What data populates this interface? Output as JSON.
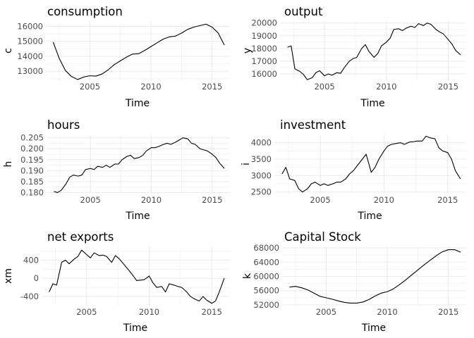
{
  "chart_data": [
    {
      "type": "line",
      "title": "consumption",
      "xlabel": "Time",
      "ylabel": "c",
      "xlim": [
        2001.4,
        2016.4
      ],
      "ylim": [
        12400,
        16350
      ],
      "xticks": [
        2005,
        2010,
        2015
      ],
      "xtick_labels": [
        "2005",
        "2010",
        "2015"
      ],
      "yticks": [
        13000,
        14000,
        15000,
        16000
      ],
      "ytick_labels": [
        "13000",
        "14000",
        "15000",
        "16000"
      ],
      "grid": true,
      "series": [
        {
          "x": [
            2002.0,
            2002.5,
            2003.0,
            2003.5,
            2004.0,
            2004.5,
            2005.0,
            2005.5,
            2006.0,
            2006.5,
            2007.0,
            2007.5,
            2008.0,
            2008.5,
            2009.0,
            2009.5,
            2010.0,
            2010.5,
            2011.0,
            2011.5,
            2012.0,
            2012.5,
            2013.0,
            2013.5,
            2014.0,
            2014.5,
            2015.0,
            2015.5,
            2016.0
          ],
          "y": [
            14950,
            13850,
            13050,
            12650,
            12450,
            12620,
            12700,
            12680,
            12820,
            13100,
            13450,
            13700,
            13950,
            14150,
            14180,
            14400,
            14650,
            14900,
            15150,
            15300,
            15350,
            15550,
            15800,
            15950,
            16050,
            16150,
            15950,
            15550,
            14750
          ]
        }
      ]
    },
    {
      "type": "line",
      "title": "output",
      "xlabel": "Time",
      "ylabel": "y",
      "xlim": [
        2001.4,
        2016.4
      ],
      "ylim": [
        15500,
        20150
      ],
      "xticks": [
        2005,
        2010,
        2015
      ],
      "xtick_labels": [
        "2005",
        "2010",
        "2015"
      ],
      "yticks": [
        16000,
        17000,
        18000,
        19000,
        20000
      ],
      "ytick_labels": [
        "16000",
        "17000",
        "18000",
        "19000",
        "20000"
      ],
      "grid": true,
      "series": [
        {
          "x": [
            2002.0,
            2002.3,
            2002.6,
            2003.0,
            2003.3,
            2003.6,
            2004.0,
            2004.3,
            2004.6,
            2005.0,
            2005.3,
            2005.6,
            2006.0,
            2006.3,
            2006.6,
            2007.0,
            2007.3,
            2007.6,
            2008.0,
            2008.3,
            2008.6,
            2009.0,
            2009.3,
            2009.6,
            2010.0,
            2010.3,
            2010.6,
            2011.0,
            2011.3,
            2011.6,
            2012.0,
            2012.3,
            2012.6,
            2013.0,
            2013.3,
            2013.6,
            2014.0,
            2014.3,
            2014.6,
            2015.0,
            2015.3,
            2015.6,
            2016.0
          ],
          "y": [
            18100,
            18200,
            16400,
            16200,
            15950,
            15550,
            15700,
            16100,
            16250,
            15850,
            16000,
            15900,
            16100,
            16050,
            16500,
            17000,
            17200,
            17300,
            18000,
            18300,
            17750,
            17300,
            17600,
            18200,
            18500,
            18800,
            19500,
            19550,
            19400,
            19600,
            19750,
            19650,
            19950,
            19800,
            20000,
            19900,
            19500,
            19300,
            19150,
            18700,
            18350,
            17850,
            17500
          ]
        }
      ]
    },
    {
      "type": "line",
      "title": "hours",
      "xlabel": "Time",
      "ylabel": "h",
      "xlim": [
        2001.4,
        2016.4
      ],
      "ylim": [
        0.1795,
        0.2065
      ],
      "xticks": [
        2005,
        2010,
        2015
      ],
      "xtick_labels": [
        "2005",
        "2010",
        "2015"
      ],
      "yticks": [
        0.18,
        0.185,
        0.19,
        0.195,
        0.2,
        0.205
      ],
      "ytick_labels": [
        "0.180",
        "0.185",
        "0.190",
        "0.195",
        "0.200",
        "0.205"
      ],
      "grid": true,
      "series": [
        {
          "x": [
            2002.0,
            2002.3,
            2002.6,
            2003.0,
            2003.3,
            2003.6,
            2004.0,
            2004.3,
            2004.6,
            2005.0,
            2005.3,
            2005.6,
            2006.0,
            2006.3,
            2006.6,
            2007.0,
            2007.3,
            2007.6,
            2008.0,
            2008.3,
            2008.6,
            2009.0,
            2009.3,
            2009.6,
            2010.0,
            2010.3,
            2010.6,
            2011.0,
            2011.3,
            2011.6,
            2012.0,
            2012.3,
            2012.6,
            2013.0,
            2013.3,
            2013.6,
            2014.0,
            2014.3,
            2014.6,
            2015.0,
            2015.3,
            2015.6,
            2016.0
          ],
          "y": [
            0.1805,
            0.18,
            0.181,
            0.184,
            0.187,
            0.188,
            0.1875,
            0.188,
            0.1905,
            0.191,
            0.1905,
            0.192,
            0.1915,
            0.1925,
            0.1915,
            0.193,
            0.193,
            0.195,
            0.1965,
            0.197,
            0.1955,
            0.196,
            0.197,
            0.199,
            0.2005,
            0.2005,
            0.201,
            0.202,
            0.2025,
            0.202,
            0.203,
            0.204,
            0.205,
            0.2045,
            0.2025,
            0.202,
            0.2,
            0.1995,
            0.199,
            0.1975,
            0.196,
            0.1935,
            0.191
          ]
        }
      ]
    },
    {
      "type": "line",
      "title": "investment",
      "xlabel": "Time",
      "ylabel": "i",
      "xlim": [
        2001.4,
        2016.4
      ],
      "ylim": [
        2450,
        4250
      ],
      "xticks": [
        2005,
        2010,
        2015
      ],
      "xtick_labels": [
        "2005",
        "2010",
        "2015"
      ],
      "yticks": [
        2500,
        3000,
        3500,
        4000
      ],
      "ytick_labels": [
        "2500",
        "3000",
        "3500",
        "4000"
      ],
      "grid": true,
      "series": [
        {
          "x": [
            2002.0,
            2002.3,
            2002.6,
            2003.0,
            2003.3,
            2003.6,
            2004.0,
            2004.3,
            2004.6,
            2005.0,
            2005.3,
            2005.6,
            2006.0,
            2006.3,
            2006.6,
            2007.0,
            2007.3,
            2007.6,
            2008.0,
            2008.3,
            2008.6,
            2009.0,
            2009.3,
            2009.6,
            2010.0,
            2010.3,
            2010.6,
            2011.0,
            2011.3,
            2011.6,
            2012.0,
            2012.3,
            2012.6,
            2013.0,
            2013.3,
            2013.6,
            2014.0,
            2014.3,
            2014.6,
            2015.0,
            2015.3,
            2015.6,
            2016.0
          ],
          "y": [
            3050,
            3250,
            2900,
            2850,
            2600,
            2500,
            2600,
            2750,
            2800,
            2700,
            2750,
            2700,
            2750,
            2800,
            2800,
            2900,
            3050,
            3150,
            3350,
            3500,
            3650,
            3100,
            3250,
            3500,
            3750,
            3900,
            3950,
            3980,
            4000,
            3950,
            4020,
            4030,
            4050,
            4050,
            4200,
            4150,
            4120,
            3850,
            3750,
            3700,
            3500,
            3150,
            2900
          ]
        }
      ]
    },
    {
      "type": "line",
      "title": "net exports",
      "xlabel": "Time",
      "ylabel": "xm",
      "xlim": [
        2001.4,
        2016.4
      ],
      "ylim": [
        -600,
        700
      ],
      "xticks": [
        2005,
        2010,
        2015
      ],
      "xtick_labels": [
        "2005",
        "2010",
        "2015"
      ],
      "yticks": [
        -400,
        0,
        400
      ],
      "ytick_labels": [
        "-400",
        "0",
        "400"
      ],
      "grid": true,
      "series": [
        {
          "x": [
            2002.0,
            2002.3,
            2002.6,
            2003.0,
            2003.3,
            2003.6,
            2004.0,
            2004.3,
            2004.6,
            2005.0,
            2005.3,
            2005.6,
            2006.0,
            2006.3,
            2006.6,
            2007.0,
            2007.3,
            2007.6,
            2008.0,
            2008.3,
            2008.6,
            2009.0,
            2009.3,
            2009.6,
            2010.0,
            2010.3,
            2010.6,
            2011.0,
            2011.3,
            2011.6,
            2012.0,
            2012.3,
            2012.6,
            2013.0,
            2013.3,
            2013.6,
            2014.0,
            2014.3,
            2014.6,
            2015.0,
            2015.3,
            2015.6,
            2016.0
          ],
          "y": [
            -300,
            -120,
            -150,
            350,
            400,
            320,
            420,
            480,
            620,
            520,
            450,
            560,
            500,
            510,
            480,
            350,
            500,
            430,
            300,
            200,
            100,
            -50,
            -40,
            -30,
            50,
            -100,
            -200,
            -180,
            -300,
            -120,
            -150,
            -180,
            -200,
            -300,
            -400,
            -450,
            -500,
            -400,
            -480,
            -550,
            -500,
            -300,
            0
          ]
        }
      ]
    },
    {
      "type": "line",
      "title": "Capital Stock",
      "xlabel": "Time",
      "ylabel": "k",
      "xlim": [
        2001.4,
        2016.4
      ],
      "ylim": [
        51800,
        68400
      ],
      "xticks": [
        2005,
        2010,
        2015
      ],
      "xtick_labels": [
        "2005",
        "2010",
        "2015"
      ],
      "yticks": [
        52000,
        56000,
        60000,
        64000,
        68000
      ],
      "ytick_labels": [
        "52000",
        "56000",
        "60000",
        "64000",
        "68000"
      ],
      "grid": true,
      "series": [
        {
          "x": [
            2002.0,
            2002.5,
            2003.0,
            2003.5,
            2004.0,
            2004.5,
            2005.0,
            2005.5,
            2006.0,
            2006.5,
            2007.0,
            2007.5,
            2008.0,
            2008.5,
            2009.0,
            2009.5,
            2010.0,
            2010.5,
            2011.0,
            2011.5,
            2012.0,
            2012.5,
            2013.0,
            2013.5,
            2014.0,
            2014.5,
            2015.0,
            2015.5,
            2016.0
          ],
          "y": [
            57000,
            57200,
            56800,
            56200,
            55300,
            54400,
            54000,
            53600,
            53100,
            52700,
            52500,
            52500,
            52800,
            53500,
            54500,
            55300,
            55700,
            56500,
            57700,
            59000,
            60400,
            61800,
            63200,
            64500,
            65800,
            66900,
            67500,
            67500,
            66800
          ]
        }
      ]
    }
  ]
}
